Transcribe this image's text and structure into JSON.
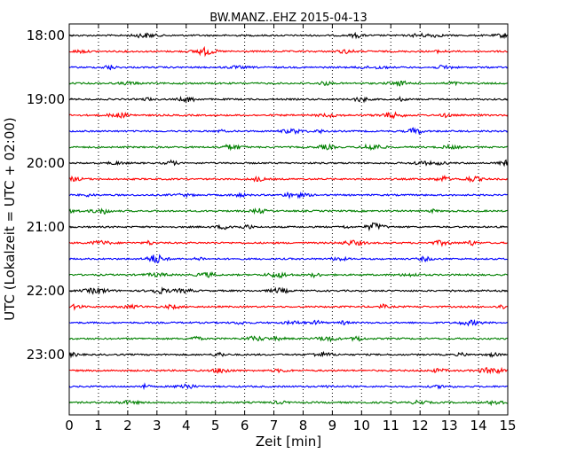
{
  "chart_data": {
    "type": "line",
    "title": "BW.MANZ..EHZ 2015-04-13",
    "xlabel": "Zeit  [min]",
    "ylabel": "UTC (Lokalzeit = UTC + 02:00)",
    "xlim": [
      0,
      15
    ],
    "x_ticks": [
      "0",
      "1",
      "2",
      "3",
      "4",
      "5",
      "6",
      "7",
      "8",
      "9",
      "10",
      "11",
      "12",
      "13",
      "14",
      "15"
    ],
    "y_ticks": [
      "18:00",
      "19:00",
      "20:00",
      "21:00",
      "22:00",
      "23:00"
    ],
    "grid": "vertical dotted",
    "traces_per_hour": 4,
    "trace_minutes": 15,
    "series": [
      {
        "start": "18:00",
        "color": "#000000"
      },
      {
        "start": "18:15",
        "color": "#ff0000"
      },
      {
        "start": "18:30",
        "color": "#0000ff"
      },
      {
        "start": "18:45",
        "color": "#008000"
      },
      {
        "start": "19:00",
        "color": "#000000"
      },
      {
        "start": "19:15",
        "color": "#ff0000"
      },
      {
        "start": "19:30",
        "color": "#0000ff"
      },
      {
        "start": "19:45",
        "color": "#008000"
      },
      {
        "start": "20:00",
        "color": "#000000"
      },
      {
        "start": "20:15",
        "color": "#ff0000"
      },
      {
        "start": "20:30",
        "color": "#0000ff"
      },
      {
        "start": "20:45",
        "color": "#008000"
      },
      {
        "start": "21:00",
        "color": "#000000"
      },
      {
        "start": "21:15",
        "color": "#ff0000"
      },
      {
        "start": "21:30",
        "color": "#0000ff"
      },
      {
        "start": "21:45",
        "color": "#008000"
      },
      {
        "start": "22:00",
        "color": "#000000"
      },
      {
        "start": "22:15",
        "color": "#ff0000"
      },
      {
        "start": "22:30",
        "color": "#0000ff"
      },
      {
        "start": "22:45",
        "color": "#008000"
      },
      {
        "start": "23:00",
        "color": "#000000"
      },
      {
        "start": "23:15",
        "color": "#ff0000"
      },
      {
        "start": "23:30",
        "color": "#0000ff"
      },
      {
        "start": "23:45",
        "color": "#008000"
      }
    ]
  }
}
